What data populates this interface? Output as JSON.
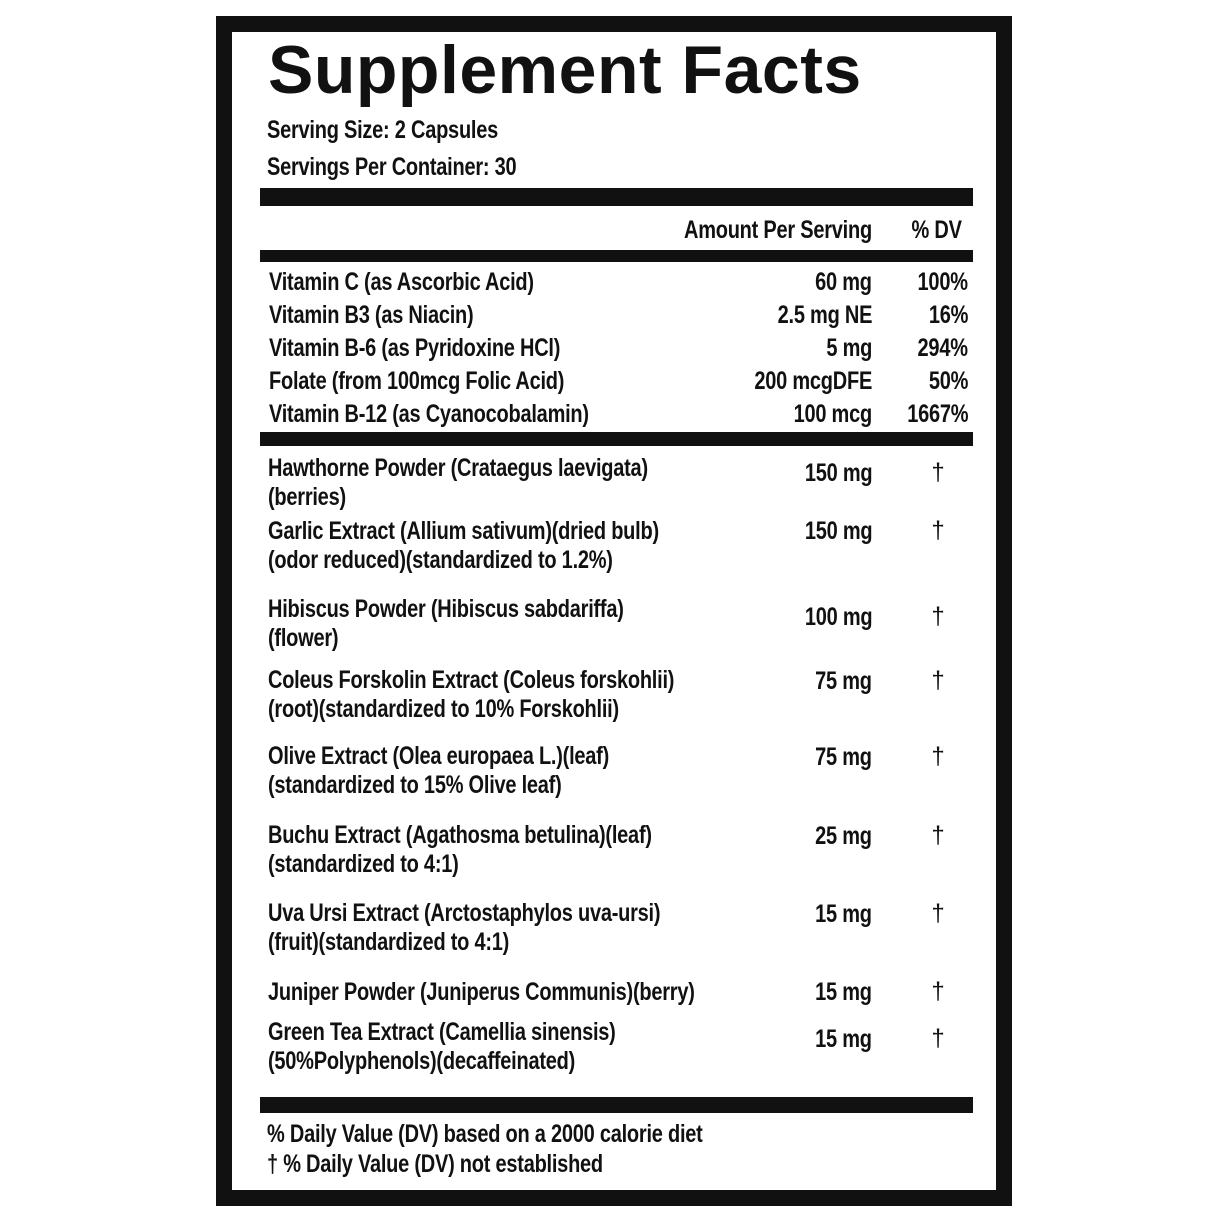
{
  "title": "Supplement Facts",
  "serving_size": "Serving Size: 2 Capsules",
  "servings_per_container": "Servings Per Container: 30",
  "header": {
    "amount": "Amount Per Serving",
    "dv": "% DV"
  },
  "vitamins": [
    {
      "name": "Vitamin C  (as Ascorbic Acid)",
      "amount": "60 mg",
      "dv": "100%"
    },
    {
      "name": "Vitamin B3 (as Niacin)",
      "amount": "2.5 mg NE",
      "dv": "16%"
    },
    {
      "name": "Vitamin B-6 (as Pyridoxine HCl)",
      "amount": "5 mg",
      "dv": "294%"
    },
    {
      "name": "Folate (from 100mcg Folic Acid)",
      "amount": "200 mcgDFE",
      "dv": "50%"
    },
    {
      "name": "Vitamin B-12 (as Cyanocobalamin)",
      "amount": "100 mcg",
      "dv": "1667%"
    }
  ],
  "ingredients": [
    {
      "line1": "Hawthorne Powder (Crataegus laevigata)",
      "line2": "(berries)",
      "amount": "150 mg",
      "dv": "†"
    },
    {
      "line1": "Garlic Extract (Allium sativum)(dried bulb)",
      "line2": "(odor reduced)(standardized to 1.2%)",
      "amount": "150 mg",
      "dv": "†"
    },
    {
      "line1": "Hibiscus Powder (Hibiscus sabdariffa)",
      "line2": "(flower)",
      "amount": "100 mg",
      "dv": "†"
    },
    {
      "line1": "Coleus Forskolin Extract (Coleus forskohlii)",
      "line2": "(root)(standardized to 10% Forskohlii)",
      "amount": "75 mg",
      "dv": "†"
    },
    {
      "line1": "Olive Extract (Olea europaea L.)(leaf)",
      "line2": "(standardized to 15% Olive leaf)",
      "amount": "75 mg",
      "dv": "†"
    },
    {
      "line1": "Buchu Extract (Agathosma betulina)(leaf)",
      "line2": "(standardized to 4:1)",
      "amount": "25 mg",
      "dv": "†"
    },
    {
      "line1": "Uva Ursi Extract (Arctostaphylos uva-ursi)",
      "line2": "(fruit)(standardized to 4:1)",
      "amount": "15 mg",
      "dv": "†"
    },
    {
      "line1": "Juniper Powder (Juniperus Communis)(berry)",
      "line2": "",
      "amount": "15 mg",
      "dv": "†"
    },
    {
      "line1": "Green Tea Extract (Camellia sinensis)",
      "line2": "(50%Polyphenols)(decaffeinated)",
      "amount": "15 mg",
      "dv": "†"
    }
  ],
  "footnotes": [
    "% Daily Value (DV) based on a 2000 calorie diet",
    "† % Daily Value (DV) not established"
  ]
}
